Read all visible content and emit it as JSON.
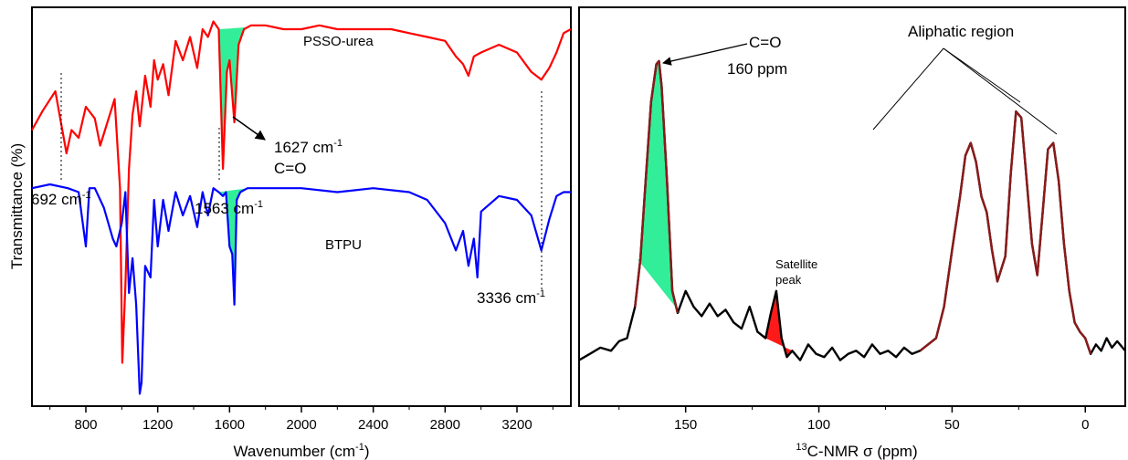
{
  "chart_data": [
    {
      "type": "line",
      "panel": "left",
      "title": "",
      "xlabel": "Wavenumber (cm-1)",
      "xlabel_parts": [
        "Wavenumber (cm",
        "-1",
        ")"
      ],
      "ylabel": "Transmittance (%)",
      "xlim": [
        500,
        3500
      ],
      "xticks": [
        800,
        1200,
        1600,
        2000,
        2400,
        2800,
        3200
      ],
      "xtick_labels": [
        "800",
        "1200",
        "1600",
        "2000",
        "2400",
        "2800",
        "3200"
      ],
      "y_ticks_shown": false,
      "legend": "none",
      "grid": false,
      "series": [
        {
          "name": "PSSO-urea",
          "color": "#ff0000",
          "x": [
            500,
            560,
            630,
            692,
            720,
            760,
            800,
            850,
            880,
            920,
            960,
            990,
            1003,
            1020,
            1040,
            1060,
            1080,
            1100,
            1130,
            1160,
            1180,
            1200,
            1230,
            1260,
            1300,
            1340,
            1380,
            1420,
            1450,
            1480,
            1510,
            1540,
            1563,
            1585,
            1600,
            1627,
            1650,
            1680,
            1720,
            1800,
            1900,
            2000,
            2100,
            2200,
            2300,
            2400,
            2500,
            2600,
            2700,
            2800,
            2860,
            2900,
            2930,
            2960,
            3000,
            3100,
            3200,
            3280,
            3336,
            3380,
            3420,
            3460,
            3500
          ],
          "y": [
            70,
            75,
            80,
            64,
            70,
            68,
            76,
            73,
            66,
            72,
            78,
            55,
            10,
            30,
            60,
            74,
            80,
            71,
            84,
            76,
            88,
            83,
            87,
            79,
            93,
            88,
            94,
            86,
            96,
            94,
            98,
            96,
            60,
            85,
            88,
            72,
            92,
            96,
            97,
            97,
            96,
            96,
            97,
            96,
            96,
            96,
            96,
            95,
            94,
            93,
            89,
            87,
            84,
            89,
            90,
            92,
            90,
            85,
            83,
            86,
            90,
            95,
            96
          ]
        },
        {
          "name": "BTPU",
          "color": "#0000ff",
          "x": [
            500,
            600,
            700,
            760,
            800,
            820,
            850,
            900,
            950,
            970,
            1000,
            1020,
            1040,
            1060,
            1080,
            1100,
            1110,
            1130,
            1160,
            1180,
            1200,
            1230,
            1260,
            1300,
            1340,
            1380,
            1420,
            1450,
            1480,
            1510,
            1540,
            1563,
            1580,
            1600,
            1615,
            1627,
            1640,
            1660,
            1700,
            1800,
            1900,
            2000,
            2200,
            2400,
            2600,
            2700,
            2800,
            2860,
            2900,
            2930,
            2960,
            2980,
            3000,
            3100,
            3200,
            3280,
            3336,
            3380,
            3420,
            3460,
            3500
          ],
          "y": [
            55,
            56,
            55,
            54,
            40,
            55,
            55,
            50,
            42,
            40,
            46,
            54,
            28,
            37,
            25,
            2,
            5,
            35,
            32,
            52,
            40,
            52,
            44,
            54,
            48,
            53,
            45,
            54,
            48,
            55,
            54,
            53,
            54,
            40,
            38,
            25,
            52,
            54,
            55,
            55,
            55,
            55,
            54,
            55,
            54,
            52,
            46,
            39,
            44,
            35,
            42,
            32,
            49,
            53,
            52,
            48,
            39,
            47,
            53,
            54,
            54
          ]
        }
      ],
      "annotations": [
        {
          "text": "PSSO-urea"
        },
        {
          "text": "BTPU"
        },
        {
          "text": "692 cm-1",
          "parts": [
            "692 cm",
            "-1"
          ]
        },
        {
          "text": "1563 cm-1",
          "parts": [
            "1563 cm",
            "-1"
          ]
        },
        {
          "text": "1627 cm-1",
          "parts": [
            "1627 cm",
            "-1"
          ]
        },
        {
          "text": "C=O"
        },
        {
          "text": "3336 cm-1",
          "parts": [
            "3336 cm",
            "-1"
          ]
        }
      ],
      "highlight_color": "#33ee99"
    },
    {
      "type": "line",
      "panel": "right",
      "title": "",
      "xlabel": "13C-NMR σ (ppm)",
      "xlabel_parts": [
        "13",
        "C-NMR σ (ppm)"
      ],
      "ylabel": "",
      "xlim": [
        190,
        -15
      ],
      "xticks": [
        150,
        100,
        50,
        0
      ],
      "xtick_labels": [
        "150",
        "100",
        "50",
        "0"
      ],
      "y_ticks_shown": false,
      "legend": "none",
      "grid": false,
      "series": [
        {
          "name": "",
          "color": "#000000",
          "accent_color": "#8b1a1a",
          "x": [
            190,
            186,
            182,
            178,
            175,
            172,
            169,
            167,
            165,
            163,
            161,
            160,
            159,
            157,
            155,
            153,
            150,
            147,
            144,
            141,
            138,
            135,
            132,
            129,
            126,
            123,
            120,
            118,
            116,
            114,
            112,
            110,
            107,
            104,
            101,
            98,
            95,
            92,
            89,
            86,
            83,
            80,
            77,
            74,
            71,
            68,
            65,
            62,
            59,
            56,
            53,
            50,
            47,
            45,
            43,
            41,
            39,
            37,
            35,
            33,
            30,
            28,
            26,
            24,
            22,
            20,
            18,
            16,
            14,
            12,
            10,
            8,
            6,
            4,
            2,
            0,
            -2,
            -4,
            -6,
            -8,
            -10,
            -12,
            -15
          ],
          "y": [
            3,
            5,
            7,
            6,
            9,
            10,
            20,
            35,
            60,
            85,
            97,
            98,
            90,
            60,
            25,
            18,
            25,
            20,
            17,
            21,
            17,
            19,
            15,
            13,
            20,
            12,
            10,
            18,
            25,
            10,
            4,
            6,
            3,
            8,
            5,
            4,
            7,
            3,
            5,
            6,
            4,
            8,
            5,
            6,
            4,
            7,
            5,
            6,
            8,
            10,
            20,
            38,
            55,
            68,
            72,
            66,
            55,
            50,
            38,
            28,
            36,
            62,
            82,
            80,
            60,
            40,
            30,
            50,
            70,
            72,
            60,
            40,
            25,
            15,
            12,
            10,
            5,
            8,
            6,
            10,
            7,
            9,
            6
          ]
        }
      ],
      "annotations": [
        {
          "text": "C=O"
        },
        {
          "text": "160 ppm"
        },
        {
          "text": "Aliphatic region"
        },
        {
          "text": "Satellite"
        },
        {
          "text": "peak"
        }
      ],
      "highlight_colors": [
        "#33ee99",
        "#ff1a1a"
      ]
    }
  ]
}
